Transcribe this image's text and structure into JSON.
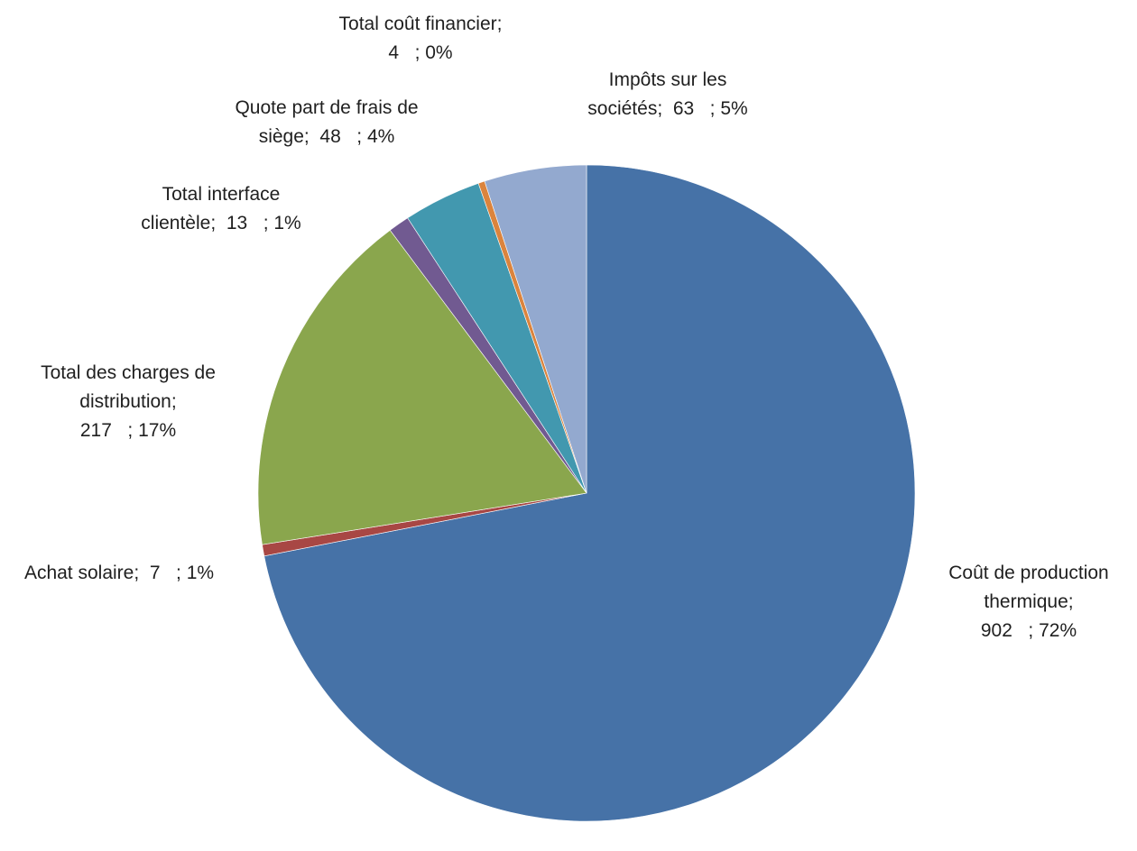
{
  "chart_data": {
    "type": "pie",
    "title": "",
    "slices": [
      {
        "name": "Coût de production thermique",
        "value": 902,
        "percent": "72%",
        "color": "#4672A7",
        "label_lines": [
          "Coût de production",
          "thermique;",
          "902   ; 72%"
        ]
      },
      {
        "name": "Achat solaire",
        "value": 7,
        "percent": "1%",
        "color": "#A84744",
        "label_lines": [
          "Achat solaire;  7   ; 1%"
        ]
      },
      {
        "name": "Total des charges de distribution",
        "value": 217,
        "percent": "17%",
        "color": "#8AA64D",
        "label_lines": [
          "Total des charges de",
          "distribution;",
          "217   ; 17%"
        ]
      },
      {
        "name": "Total interface clientèle",
        "value": 13,
        "percent": "1%",
        "color": "#715A91",
        "label_lines": [
          "Total interface",
          "clientèle;  13   ; 1%"
        ]
      },
      {
        "name": "Quote part de frais de siège",
        "value": 48,
        "percent": "4%",
        "color": "#4298AF",
        "label_lines": [
          "Quote part de frais de",
          "siège;  48   ; 4%"
        ]
      },
      {
        "name": "Total coût financier",
        "value": 4,
        "percent": "0%",
        "color": "#DB843D",
        "label_lines": [
          "Total coût financier;",
          "4   ; 0%"
        ]
      },
      {
        "name": "Impôts sur les sociétés",
        "value": 63,
        "percent": "5%",
        "color": "#93A9CF",
        "label_lines": [
          "Impôts sur les",
          "sociétés;  63   ; 5%"
        ]
      }
    ],
    "start_angle": "12 o'clock",
    "direction": "clockwise",
    "legend": "none",
    "data_labels": "outside, category name; value ; percent"
  }
}
